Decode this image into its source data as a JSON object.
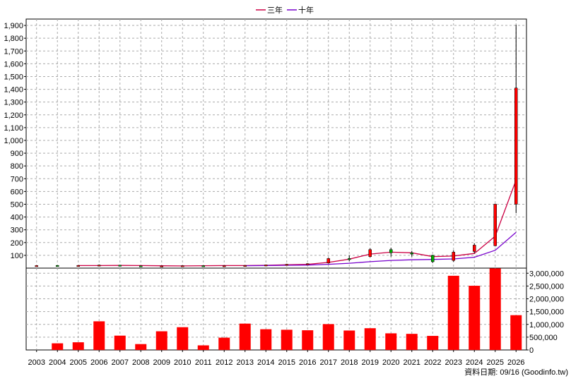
{
  "legend": {
    "items": [
      {
        "label": "三年",
        "color": "#cc0044"
      },
      {
        "label": "十年",
        "color": "#7700cc"
      }
    ]
  },
  "footer": {
    "source": "資料日期: 09/16  (Goodinfo.tw)"
  },
  "chart_data": [
    {
      "type": "candlestick",
      "title": "",
      "legend_position": "top-center",
      "grid": true,
      "x": [
        "2003",
        "2004",
        "2005",
        "2006",
        "2007",
        "2008",
        "2009",
        "2010",
        "2011",
        "2012",
        "2013",
        "2014",
        "2015",
        "2016",
        "2017",
        "2018",
        "2019",
        "2020",
        "2021",
        "2022",
        "2023",
        "2024",
        "2025",
        "2026"
      ],
      "ylim": [
        0,
        1950
      ],
      "yticks": [
        100,
        200,
        300,
        400,
        500,
        600,
        700,
        800,
        900,
        1000,
        1100,
        1200,
        1300,
        1400,
        1500,
        1600,
        1700,
        1800,
        1900
      ],
      "ytick_labels": [
        "100",
        "200",
        "300",
        "400",
        "500",
        "600",
        "700",
        "800",
        "900",
        "1,000",
        "1,100",
        "1,200",
        "1,300",
        "1,400",
        "1,500",
        "1,600",
        "1,700",
        "1,800",
        "1,900"
      ],
      "candles": [
        {
          "x": "2003",
          "open": 19,
          "close": 20,
          "high": 22,
          "low": 18
        },
        {
          "x": "2004",
          "open": 21,
          "close": 19,
          "high": 23,
          "low": 17
        },
        {
          "x": "2005",
          "open": 20,
          "close": 21,
          "high": 23,
          "low": 19
        },
        {
          "x": "2006",
          "open": 21,
          "close": 24,
          "high": 28,
          "low": 20
        },
        {
          "x": "2007",
          "open": 23,
          "close": 22,
          "high": 25,
          "low": 20
        },
        {
          "x": "2008",
          "open": 18,
          "close": 14,
          "high": 19,
          "low": 12
        },
        {
          "x": "2009",
          "open": 14,
          "close": 17,
          "high": 18,
          "low": 12
        },
        {
          "x": "2010",
          "open": 18,
          "close": 19,
          "high": 21,
          "low": 16
        },
        {
          "x": "2011",
          "open": 19,
          "close": 17,
          "high": 21,
          "low": 15
        },
        {
          "x": "2012",
          "open": 17,
          "close": 19,
          "high": 20,
          "low": 16
        },
        {
          "x": "2013",
          "open": 18,
          "close": 21,
          "high": 23,
          "low": 17
        },
        {
          "x": "2014",
          "open": 22,
          "close": 25,
          "high": 28,
          "low": 20
        },
        {
          "x": "2015",
          "open": 26,
          "close": 30,
          "high": 34,
          "low": 22
        },
        {
          "x": "2016",
          "open": 28,
          "close": 35,
          "high": 38,
          "low": 26
        },
        {
          "x": "2017",
          "open": 40,
          "close": 75,
          "high": 80,
          "low": 35
        },
        {
          "x": "2018",
          "open": 75,
          "close": 70,
          "high": 100,
          "low": 55
        },
        {
          "x": "2019",
          "open": 90,
          "close": 145,
          "high": 155,
          "low": 85
        },
        {
          "x": "2020",
          "open": 145,
          "close": 120,
          "high": 160,
          "low": 90
        },
        {
          "x": "2021",
          "open": 120,
          "close": 110,
          "high": 135,
          "low": 90
        },
        {
          "x": "2022",
          "open": 100,
          "close": 50,
          "high": 105,
          "low": 40
        },
        {
          "x": "2023",
          "open": 60,
          "close": 125,
          "high": 140,
          "low": 50
        },
        {
          "x": "2024",
          "open": 130,
          "close": 180,
          "high": 195,
          "low": 115
        },
        {
          "x": "2025",
          "open": 175,
          "close": 500,
          "high": 505,
          "low": 170
        },
        {
          "x": "2026",
          "open": 500,
          "close": 1410,
          "high": 1905,
          "low": 430
        }
      ],
      "series": [
        {
          "name": "三年",
          "color": "#cc0044",
          "values": [
            null,
            null,
            20,
            20,
            21,
            20,
            18,
            17,
            19,
            20,
            20,
            22,
            26,
            30,
            45,
            70,
            110,
            125,
            120,
            90,
            95,
            115,
            250,
            690
          ]
        },
        {
          "name": "十年",
          "color": "#7700cc",
          "values": [
            null,
            null,
            null,
            null,
            null,
            null,
            null,
            null,
            null,
            null,
            19,
            20,
            22,
            24,
            30,
            38,
            50,
            60,
            65,
            68,
            72,
            85,
            140,
            280
          ]
        }
      ]
    },
    {
      "type": "bar",
      "title": "",
      "grid": true,
      "categories": [
        "2003",
        "2004",
        "2005",
        "2006",
        "2007",
        "2008",
        "2009",
        "2010",
        "2011",
        "2012",
        "2013",
        "2014",
        "2015",
        "2016",
        "2017",
        "2018",
        "2019",
        "2020",
        "2021",
        "2022",
        "2023",
        "2024",
        "2025",
        "2026"
      ],
      "values": [
        0,
        260000,
        300000,
        1120000,
        560000,
        230000,
        730000,
        890000,
        180000,
        480000,
        1030000,
        810000,
        790000,
        770000,
        1010000,
        760000,
        850000,
        650000,
        630000,
        550000,
        2900000,
        2510000,
        3190000,
        1360000
      ],
      "bar_color": "#ff0000",
      "ylim": [
        0,
        3200000
      ],
      "yticks": [
        0,
        500000,
        1000000,
        1500000,
        2000000,
        2500000,
        3000000
      ],
      "ytick_labels": [
        "0",
        "500,000",
        "1,000,000",
        "1,500,000",
        "2,000,000",
        "2,500,000",
        "3,000,000"
      ],
      "ytick_position": "right"
    }
  ]
}
